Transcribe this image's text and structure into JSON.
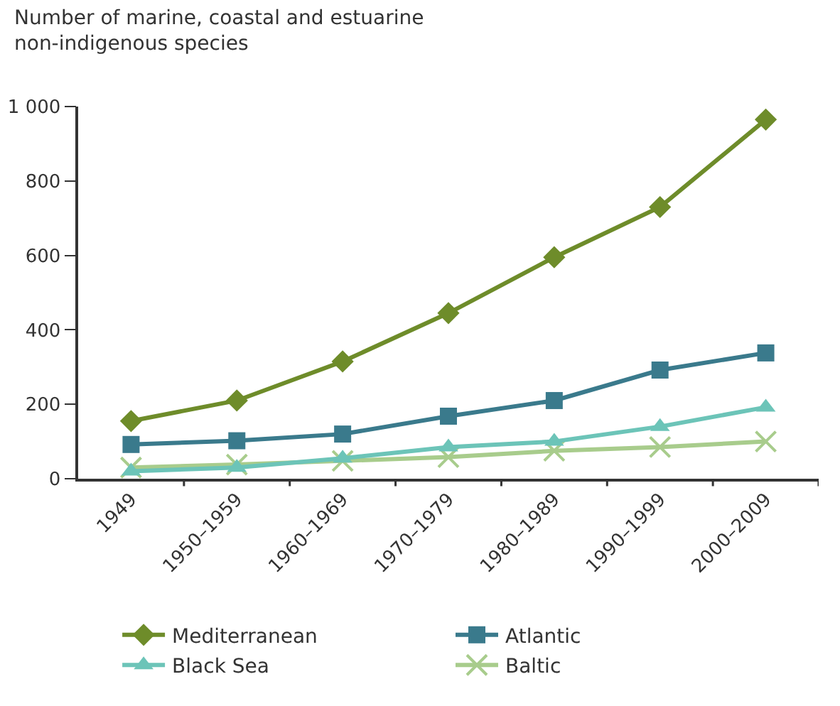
{
  "chart_data": {
    "type": "line",
    "ylabel": "Number of marine, coastal and estuarine non-indigenous species",
    "categories": [
      "1949",
      "1950–1959",
      "1960–1969",
      "1970–1979",
      "1980–1989",
      "1990–1999",
      "2000–2009"
    ],
    "series": [
      {
        "name": "Mediterranean",
        "color": "#6e8c2a",
        "marker": "diamond",
        "values": [
          155,
          210,
          315,
          445,
          595,
          730,
          965
        ]
      },
      {
        "name": "Atlantic",
        "color": "#3a7a8c",
        "marker": "square",
        "values": [
          92,
          102,
          120,
          168,
          210,
          292,
          338
        ]
      },
      {
        "name": "Black Sea",
        "color": "#6cc4b8",
        "marker": "triangle",
        "values": [
          20,
          30,
          55,
          85,
          100,
          140,
          192
        ]
      },
      {
        "name": "Baltic",
        "color": "#a8cc8c",
        "marker": "cross",
        "values": [
          30,
          38,
          48,
          58,
          75,
          85,
          100
        ]
      }
    ],
    "ylim": [
      0,
      1000
    ],
    "yticks": [
      0,
      200,
      400,
      600,
      800,
      {
        "value": 1000,
        "label": "1 000"
      }
    ],
    "grid": false,
    "legend": "bottom",
    "line_style": "solid"
  }
}
